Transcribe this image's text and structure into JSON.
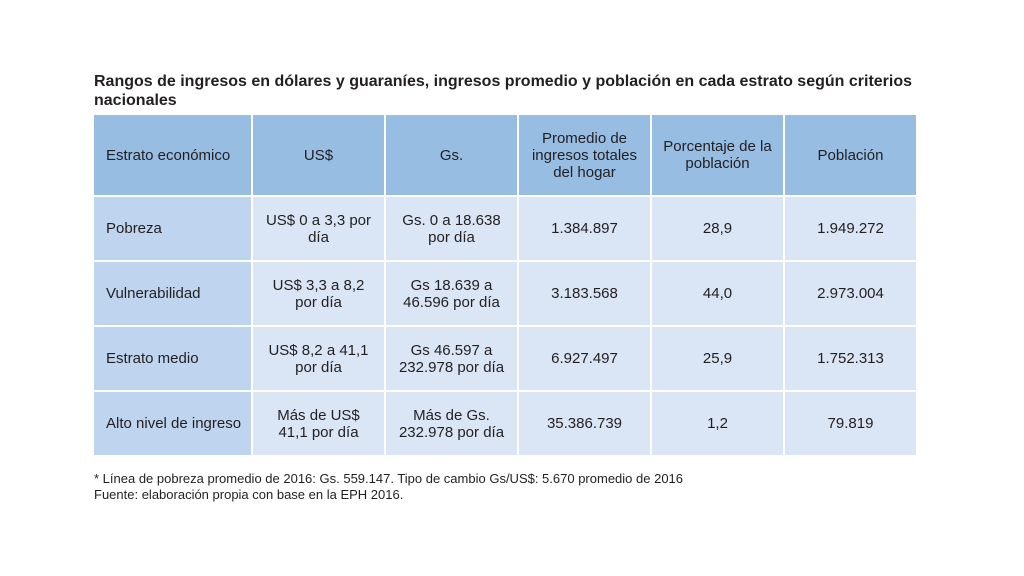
{
  "title": "Rangos de ingresos en dólares y guaraníes, ingresos promedio y población en cada estrato según criterios nacionales",
  "table": {
    "headers": [
      "Estrato económico",
      "US$",
      "Gs.",
      "Promedio de ingresos totales del hogar",
      "Porcentaje de la población",
      "Población"
    ],
    "rows": [
      {
        "estrato": "Pobreza",
        "usd": "US$ 0 a 3,3 por día",
        "gs": "Gs. 0 a 18.638 por día",
        "promedio": "1.384.897",
        "porcentaje": "28,9",
        "poblacion": "1.949.272"
      },
      {
        "estrato": "Vulnerabilidad",
        "usd": "US$ 3,3 a 8,2 por día",
        "gs": "Gs 18.639 a 46.596 por día",
        "promedio": "3.183.568",
        "porcentaje": "44,0",
        "poblacion": "2.973.004"
      },
      {
        "estrato": "Estrato medio",
        "usd": "US$ 8,2 a 41,1 por día",
        "gs": "Gs 46.597 a 232.978 por día",
        "promedio": "6.927.497",
        "porcentaje": "25,9",
        "poblacion": "1.752.313"
      },
      {
        "estrato": "Alto nivel de ingreso",
        "usd": "Más de US$ 41,1 por día",
        "gs": "Más de Gs. 232.978 por día",
        "promedio": "35.386.739",
        "porcentaje": "1,2",
        "poblacion": "79.819"
      }
    ]
  },
  "footnotes": [
    "* Línea de pobreza promedio de 2016: Gs. 559.147. Tipo de cambio Gs/US$: 5.670 promedio de 2016",
    "Fuente: elaboración propia con base en la EPH 2016."
  ],
  "colors": {
    "header_bg": "#97bde3",
    "first_col_bg": "#bfd4ee",
    "cell_bg": "#dae5f5",
    "text": "#231f20"
  }
}
